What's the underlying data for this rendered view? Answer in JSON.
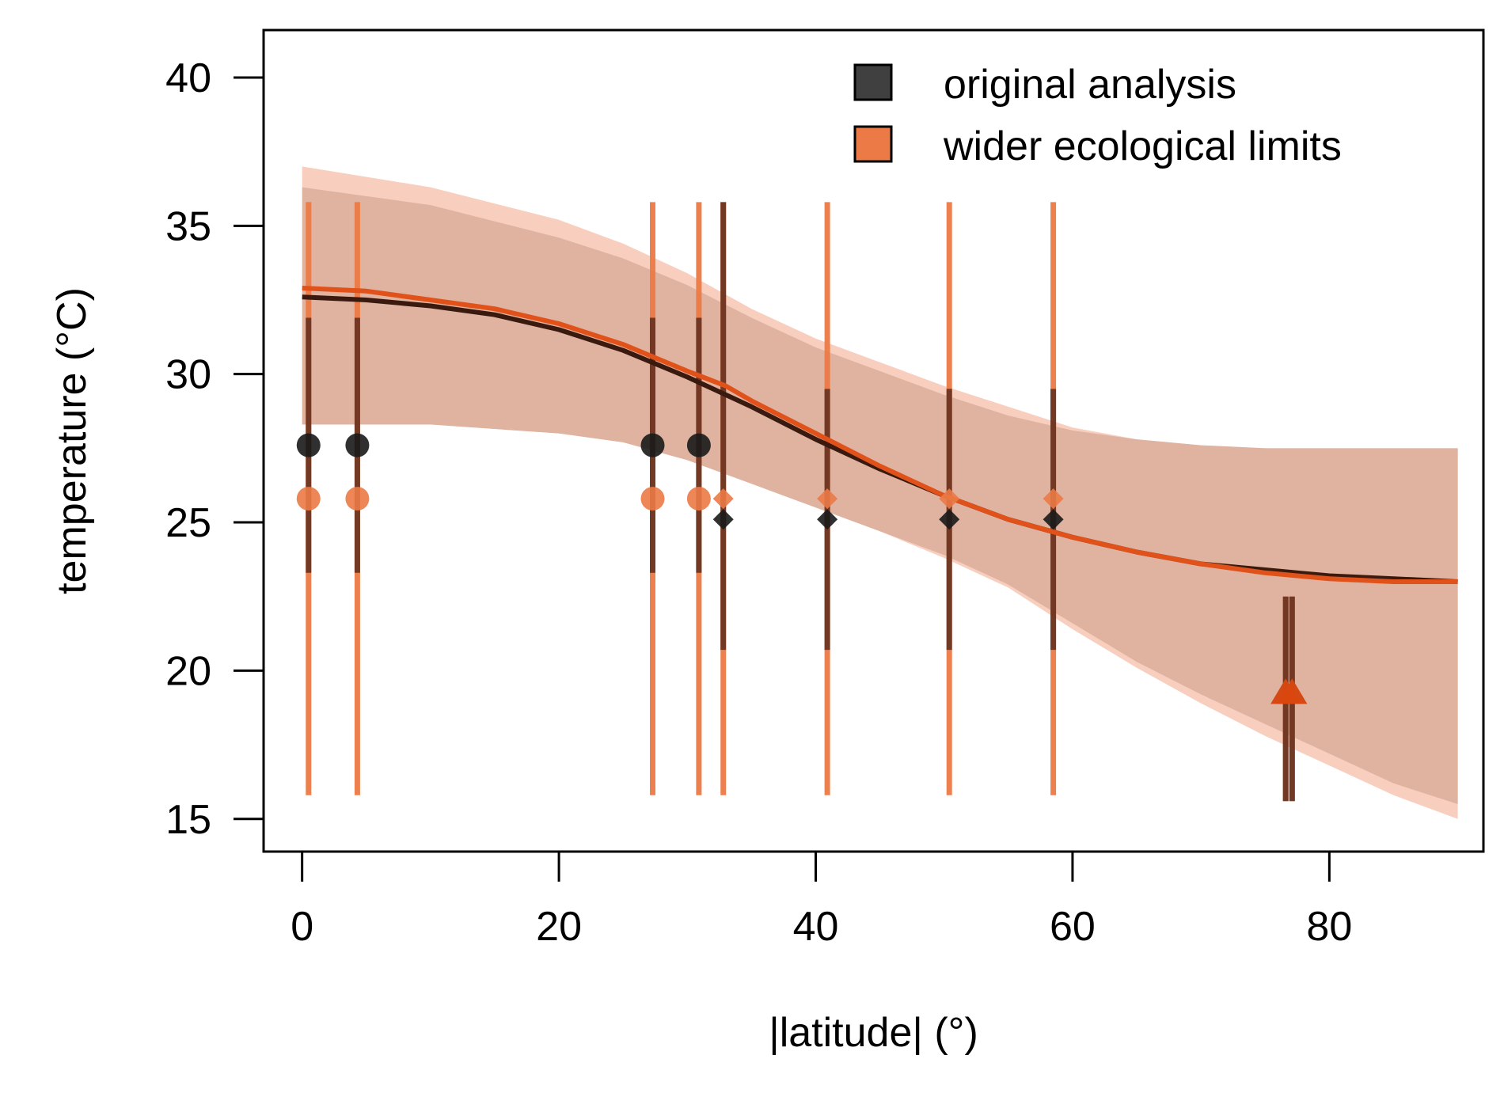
{
  "chart_data": {
    "type": "scatter",
    "xlabel": "|latitude| (°)",
    "ylabel": "temperature (°C)",
    "xlim": [
      -3,
      92
    ],
    "ylim": [
      13.9,
      41.6
    ],
    "xticks": [
      0,
      20,
      40,
      60,
      80
    ],
    "yticks": [
      15,
      20,
      25,
      30,
      35,
      40
    ],
    "xtick_labels": [
      "0",
      "20",
      "40",
      "60",
      "80"
    ],
    "ytick_labels": [
      "15",
      "20",
      "25",
      "30",
      "35",
      "40"
    ],
    "grid": false,
    "legend_position": "top-right",
    "legend": [
      {
        "label": "original analysis",
        "color": "#404040"
      },
      {
        "label": "wider ecological limits",
        "color": "#EB7A46"
      }
    ],
    "series": [
      {
        "name": "original analysis",
        "color": "#1a1a1a",
        "errorbar_color": "#6B3522",
        "curve_color": "#3A1A0E",
        "band_color": "#B8A8A6",
        "points": [
          {
            "x": 0.5,
            "y": 27.6,
            "ymin": 23.3,
            "ymax": 31.9,
            "marker": "circle"
          },
          {
            "x": 4.3,
            "y": 27.6,
            "ymin": 23.3,
            "ymax": 31.9,
            "marker": "circle"
          },
          {
            "x": 27.3,
            "y": 27.6,
            "ymin": 23.3,
            "ymax": 31.9,
            "marker": "circle"
          },
          {
            "x": 30.9,
            "y": 27.6,
            "ymin": 23.3,
            "ymax": 31.9,
            "marker": "circle"
          },
          {
            "x": 32.8,
            "y": 25.1,
            "ymin": 20.7,
            "ymax": 35.8,
            "marker": "diamond"
          },
          {
            "x": 40.9,
            "y": 25.1,
            "ymin": 20.7,
            "ymax": 29.5,
            "marker": "diamond"
          },
          {
            "x": 50.4,
            "y": 25.1,
            "ymin": 20.7,
            "ymax": 29.5,
            "marker": "diamond"
          },
          {
            "x": 58.5,
            "y": 25.1,
            "ymin": 20.7,
            "ymax": 29.5,
            "marker": "diamond"
          },
          {
            "x": 76.6,
            "y": 19.2,
            "ymin": 15.6,
            "ymax": 22.5,
            "marker": "triangle"
          },
          {
            "x": 77.1,
            "y": 19.2,
            "ymin": 15.6,
            "ymax": 22.5,
            "marker": "triangle"
          }
        ],
        "curve": {
          "x": [
            0,
            5,
            10,
            15,
            20,
            25,
            30,
            33,
            35,
            40,
            45,
            50,
            55,
            60,
            65,
            70,
            75,
            80,
            85,
            90
          ],
          "y": [
            32.6,
            32.5,
            32.3,
            32.0,
            31.5,
            30.8,
            29.9,
            29.3,
            28.9,
            27.8,
            26.8,
            25.9,
            25.1,
            24.5,
            24.0,
            23.6,
            23.4,
            23.2,
            23.1,
            23.0
          ]
        },
        "band": {
          "x": [
            0,
            10,
            20,
            25,
            30,
            35,
            40,
            45,
            50,
            55,
            60,
            65,
            70,
            75,
            80,
            85,
            90
          ],
          "upper": [
            36.3,
            35.7,
            34.6,
            33.9,
            33.0,
            31.9,
            30.9,
            30.1,
            29.3,
            28.6,
            28.1,
            27.8,
            27.6,
            27.5,
            27.5,
            27.5,
            27.5
          ],
          "lower": [
            28.3,
            28.3,
            28.0,
            27.7,
            27.1,
            26.3,
            25.5,
            24.7,
            23.9,
            22.9,
            21.6,
            20.3,
            19.2,
            18.2,
            17.2,
            16.2,
            15.5
          ]
        }
      },
      {
        "name": "wider ecological limits",
        "color": "#EB7A46",
        "errorbar_color": "#EB7A46",
        "curve_color": "#E0521A",
        "band_color": "#F2A788",
        "points": [
          {
            "x": 0.5,
            "y": 25.8,
            "ymin": 15.8,
            "ymax": 35.8,
            "marker": "circle"
          },
          {
            "x": 4.3,
            "y": 25.8,
            "ymin": 15.8,
            "ymax": 35.8,
            "marker": "circle"
          },
          {
            "x": 27.3,
            "y": 25.8,
            "ymin": 15.8,
            "ymax": 35.8,
            "marker": "circle"
          },
          {
            "x": 30.9,
            "y": 25.8,
            "ymin": 15.8,
            "ymax": 35.8,
            "marker": "circle"
          },
          {
            "x": 32.8,
            "y": 25.8,
            "ymin": 15.8,
            "ymax": 35.8,
            "marker": "diamond"
          },
          {
            "x": 40.9,
            "y": 25.8,
            "ymin": 15.8,
            "ymax": 35.8,
            "marker": "diamond"
          },
          {
            "x": 50.4,
            "y": 25.8,
            "ymin": 15.8,
            "ymax": 35.8,
            "marker": "diamond"
          },
          {
            "x": 58.5,
            "y": 25.8,
            "ymin": 15.8,
            "ymax": 35.8,
            "marker": "diamond"
          },
          {
            "x": 76.6,
            "y": 19.2,
            "ymin": 15.6,
            "ymax": 22.5,
            "marker": "triangle"
          },
          {
            "x": 77.1,
            "y": 19.2,
            "ymin": 15.6,
            "ymax": 22.5,
            "marker": "triangle"
          }
        ],
        "curve": {
          "x": [
            0,
            5,
            10,
            15,
            20,
            25,
            30,
            33,
            35,
            40,
            45,
            50,
            55,
            60,
            65,
            70,
            75,
            80,
            85,
            90
          ],
          "y": [
            32.9,
            32.8,
            32.5,
            32.2,
            31.7,
            31.0,
            30.1,
            29.6,
            29.1,
            28.0,
            26.9,
            25.9,
            25.1,
            24.5,
            24.0,
            23.6,
            23.3,
            23.1,
            23.0,
            23.0
          ]
        },
        "band": {
          "x": [
            0,
            10,
            20,
            25,
            30,
            35,
            40,
            45,
            50,
            55,
            60,
            65,
            70,
            75,
            80,
            85,
            90
          ],
          "upper": [
            37.0,
            36.3,
            35.2,
            34.4,
            33.4,
            32.2,
            31.2,
            30.4,
            29.6,
            28.9,
            28.2,
            27.8,
            27.6,
            27.5,
            27.5,
            27.5,
            27.5
          ],
          "lower": [
            28.3,
            28.3,
            28.0,
            27.7,
            27.1,
            26.3,
            25.5,
            24.7,
            23.8,
            22.8,
            21.4,
            20.1,
            18.9,
            17.8,
            16.8,
            15.8,
            15.0
          ]
        }
      }
    ]
  }
}
